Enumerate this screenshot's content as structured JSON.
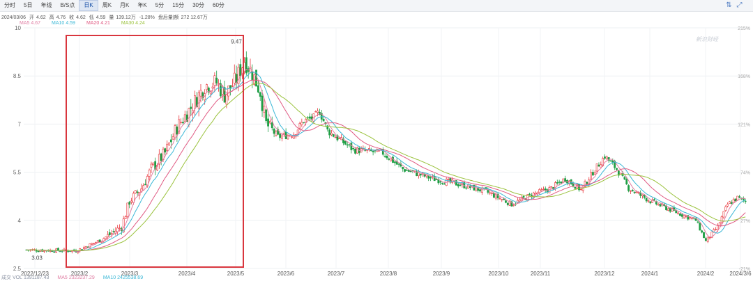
{
  "toolbar": {
    "tabs": [
      "分时",
      "5日",
      "年线",
      "B/S点",
      "日K",
      "周K",
      "月K",
      "年K",
      "5分",
      "15分",
      "30分",
      "60分"
    ],
    "active_tab_index": 4,
    "tools": [
      {
        "icon": "settings-sliders-icon",
        "glyph": "⇅"
      },
      {
        "icon": "expand-icon",
        "glyph": "⤢"
      }
    ]
  },
  "quote_line": {
    "date": "2024/03/06",
    "open_label": "开",
    "open": "4.62",
    "high_label": "高",
    "high": "4.76",
    "close_label": "收",
    "close": "4.62",
    "low_label": "低",
    "low": "4.59",
    "volume_label": "量",
    "volume": "139.12万",
    "change": "-1.28%",
    "after_hours_label": "盘后量|额",
    "after_hours": "272 12.67万"
  },
  "ma_legend": [
    {
      "label": "MA5",
      "value": "4.67",
      "color": "#e07ea3"
    },
    {
      "label": "MA10",
      "value": "4.59",
      "color": "#39b7d6"
    },
    {
      "label": "MA20",
      "value": "4.21",
      "color": "#e05a83"
    },
    {
      "label": "MA30",
      "value": "4.24",
      "color": "#9ac23c"
    }
  ],
  "volume_legend": [
    {
      "label": "成交 VOL",
      "value": "1391187.43",
      "color": "#8b93a3"
    },
    {
      "label": "MA5",
      "value": "2323237.29",
      "color": "#e07ea3"
    },
    {
      "label": "MA10",
      "value": "2425538.69",
      "color": "#39b7d6"
    }
  ],
  "watermark": "新浪财经",
  "chart_data": {
    "type": "candlestick",
    "y_ticks": [
      2.5,
      4,
      5.5,
      7,
      8.5,
      10
    ],
    "y_tick_labels": [
      "2.5",
      "4",
      "5.5",
      "7",
      "8.5",
      "10"
    ],
    "ylim": [
      2.5,
      10
    ],
    "right_pct_labels": [
      "215%",
      "168%",
      "121%",
      "74%",
      "27%",
      "-21%"
    ],
    "x_labels": [
      "2022/12/23",
      "2023/2",
      "2023/3",
      "2023/4",
      "2023/5",
      "2023/6",
      "2023/7",
      "2023/8",
      "2023/9",
      "2023/10",
      "2023/11",
      "2023/12",
      "2024/1",
      "2024/2",
      "2024/3/6"
    ],
    "annotations": [
      {
        "text": "9.47",
        "value": 9.47
      },
      {
        "text": "3.03",
        "value": 3.03
      }
    ],
    "highlight_box": {
      "from": "2023/1/27",
      "to": "2023/5/8",
      "color": "#d9363e"
    },
    "candle_colors": {
      "up": "#e8353b",
      "down": "#1f9e45"
    },
    "price_path": [
      [
        0,
        3.08
      ],
      [
        25,
        3.05
      ],
      [
        38,
        3.4
      ],
      [
        48,
        3.8
      ],
      [
        52,
        4.6
      ],
      [
        58,
        5.0
      ],
      [
        63,
        5.6
      ],
      [
        70,
        6.1
      ],
      [
        76,
        6.9
      ],
      [
        84,
        7.6
      ],
      [
        90,
        8.2
      ],
      [
        96,
        8.3
      ],
      [
        100,
        7.9
      ],
      [
        106,
        8.4
      ],
      [
        110,
        9.0
      ],
      [
        114,
        8.6
      ],
      [
        118,
        8.0
      ],
      [
        121,
        7.0
      ],
      [
        127,
        6.6
      ],
      [
        135,
        6.7
      ],
      [
        140,
        7.1
      ],
      [
        145,
        7.2
      ],
      [
        148,
        7.4
      ],
      [
        152,
        6.8
      ],
      [
        165,
        6.2
      ],
      [
        180,
        6.1
      ],
      [
        190,
        5.6
      ],
      [
        205,
        5.3
      ],
      [
        220,
        5.1
      ],
      [
        232,
        4.9
      ],
      [
        245,
        4.5
      ],
      [
        255,
        4.8
      ],
      [
        265,
        5.0
      ],
      [
        272,
        5.3
      ],
      [
        280,
        4.95
      ],
      [
        286,
        5.5
      ],
      [
        292,
        6.0
      ],
      [
        298,
        5.6
      ],
      [
        304,
        5.0
      ],
      [
        315,
        4.6
      ],
      [
        330,
        4.2
      ],
      [
        338,
        4.0
      ],
      [
        343,
        3.35
      ],
      [
        349,
        3.8
      ],
      [
        354,
        4.5
      ],
      [
        359,
        4.7
      ],
      [
        363,
        4.6
      ]
    ],
    "ma_series": [
      {
        "name": "MA5",
        "color": "#e07ea3",
        "window": 5
      },
      {
        "name": "MA10",
        "color": "#39b7d6",
        "window": 10
      },
      {
        "name": "MA20",
        "color": "#e05a83",
        "window": 20
      },
      {
        "name": "MA30",
        "color": "#9ac23c",
        "window": 30
      }
    ],
    "grid": true
  }
}
